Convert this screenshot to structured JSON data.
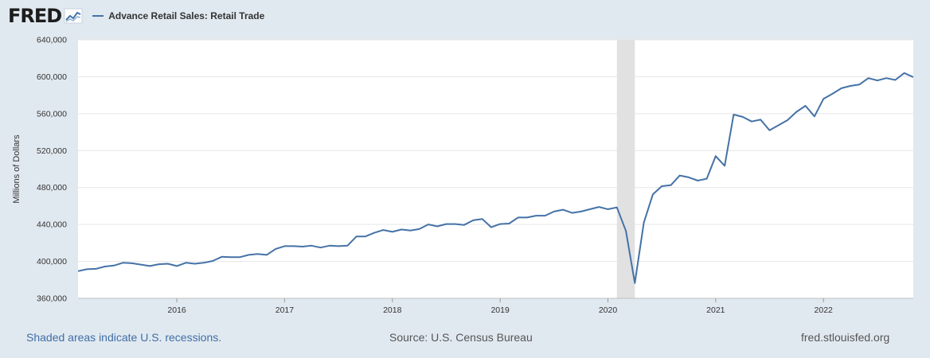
{
  "header": {
    "logo_text": "FRED",
    "logo_mark": "fred-chart-logo-icon",
    "series_label": "Advance Retail Sales: Retail Trade"
  },
  "footer": {
    "recessions_note": "Shaded areas indicate U.S. recessions.",
    "source": "Source: U.S. Census Bureau",
    "site": "fred.stlouisfed.org"
  },
  "colors": {
    "series": "#4572a7",
    "recession": "#e1e1e1",
    "background": "#e1e9f0",
    "plot": "#ffffff",
    "grid": "#e6e6e6"
  },
  "chart_data": {
    "type": "line",
    "ylabel": "Millions of Dollars",
    "ylim": [
      360000,
      640000
    ],
    "yticks": [
      360000,
      400000,
      440000,
      480000,
      520000,
      560000,
      600000,
      640000
    ],
    "ytick_labels": [
      "360,000",
      "400,000",
      "440,000",
      "480,000",
      "520,000",
      "560,000",
      "600,000",
      "640,000"
    ],
    "xlim": [
      "2015-02",
      "2022-11"
    ],
    "xticks": [
      "2016-01",
      "2017-01",
      "2018-01",
      "2019-01",
      "2020-01",
      "2021-01",
      "2022-01"
    ],
    "xtick_labels": [
      "2016",
      "2017",
      "2018",
      "2019",
      "2020",
      "2021",
      "2022"
    ],
    "grid": true,
    "recessions": [
      {
        "start": "2020-02",
        "end": "2020-04"
      }
    ],
    "series": [
      {
        "name": "Advance Retail Sales: Retail Trade",
        "start": "2015-02",
        "frequency": "monthly",
        "values": [
          389500,
          391500,
          392000,
          394500,
          395500,
          398500,
          398000,
          396500,
          395000,
          397000,
          397500,
          395000,
          398500,
          397500,
          398500,
          400500,
          405000,
          404500,
          404500,
          407000,
          408000,
          407000,
          413500,
          416500,
          416500,
          416000,
          417000,
          415000,
          417000,
          416500,
          417000,
          427000,
          427000,
          431000,
          434000,
          432000,
          434500,
          433500,
          435000,
          440000,
          438000,
          440500,
          440500,
          439500,
          444500,
          446000,
          437000,
          440500,
          441000,
          447500,
          447500,
          449500,
          449500,
          454000,
          456000,
          452500,
          454000,
          456500,
          459000,
          456500,
          458500,
          433000,
          376500,
          442000,
          472500,
          481500,
          482500,
          493000,
          491000,
          487500,
          489500,
          514000,
          503500,
          559000,
          556500,
          551500,
          553500,
          542000,
          547500,
          553000,
          562000,
          568500,
          557000,
          576000,
          581500,
          587500,
          590000,
          591500,
          598500,
          596000,
          598500,
          596500,
          604000,
          599500
        ]
      }
    ]
  }
}
